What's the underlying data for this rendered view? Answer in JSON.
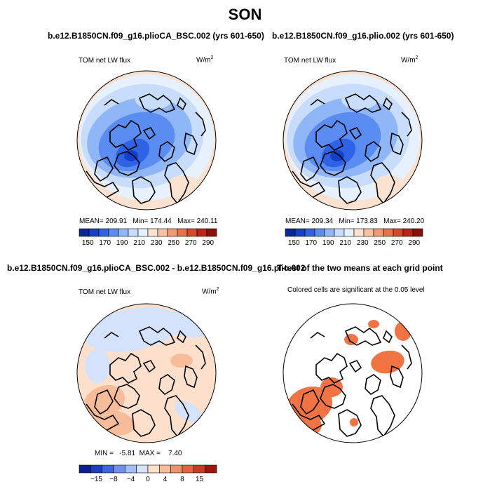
{
  "figure": {
    "title": "SON"
  },
  "panels": [
    {
      "title": "b.e12.B1850CN.f09_g16.plioCA_BSC.002 (yrs 601-650)",
      "variable": "TOM net LW flux",
      "units": "W/m",
      "units_exp": "2",
      "stats": "MEAN= 209.91   Min= 174.44   Max= 240.11",
      "colorbar": {
        "ticks": [
          "150",
          "170",
          "190",
          "210",
          "230",
          "250",
          "270",
          "290"
        ]
      }
    },
    {
      "title": "b.e12.B1850CN.f09_g16.plio.002 (yrs 601-650)",
      "variable": "TOM net LW flux",
      "units": "W/m",
      "units_exp": "2",
      "stats": "MEAN= 209.34   Min= 173.83   Max= 240.20",
      "colorbar": {
        "ticks": [
          "150",
          "170",
          "190",
          "210",
          "230",
          "250",
          "270",
          "290"
        ]
      }
    },
    {
      "title": "b.e12.B1850CN.f09_g16.plioCA_BSC.002 - b.e12.B1850CN.f09_g16.plio.002",
      "variable": "TOM net LW flux",
      "units": "W/m",
      "units_exp": "2",
      "stats": "MIN =   -5.81  MAX =    7.40",
      "colorbar": {
        "ticks": [
          "-15",
          "-8",
          "-4",
          "0",
          "4",
          "8",
          "15"
        ]
      }
    },
    {
      "title": "T-test of the two means at each grid point",
      "subtitle": "Colored cells are significant at the 0.05 level"
    }
  ],
  "colors": {
    "abs_scale": [
      "#08279b",
      "#1440c8",
      "#2f63e6",
      "#5a8cf2",
      "#8fb6f7",
      "#c8dcfb",
      "#e7f0fd",
      "#fbe1d0",
      "#f6c1a4",
      "#f09a73",
      "#e8714a",
      "#d8472a",
      "#bc2417",
      "#8a0e0a"
    ],
    "diff_scale": [
      "#0a1d94",
      "#1b3cc3",
      "#3d63df",
      "#6f90ec",
      "#a3bdf6",
      "#d4e3fb",
      "#fde0cc",
      "#f7bd9b",
      "#f1916b",
      "#e3623f",
      "#c93a22",
      "#9c140d"
    ],
    "significant": "#f07443"
  }
}
